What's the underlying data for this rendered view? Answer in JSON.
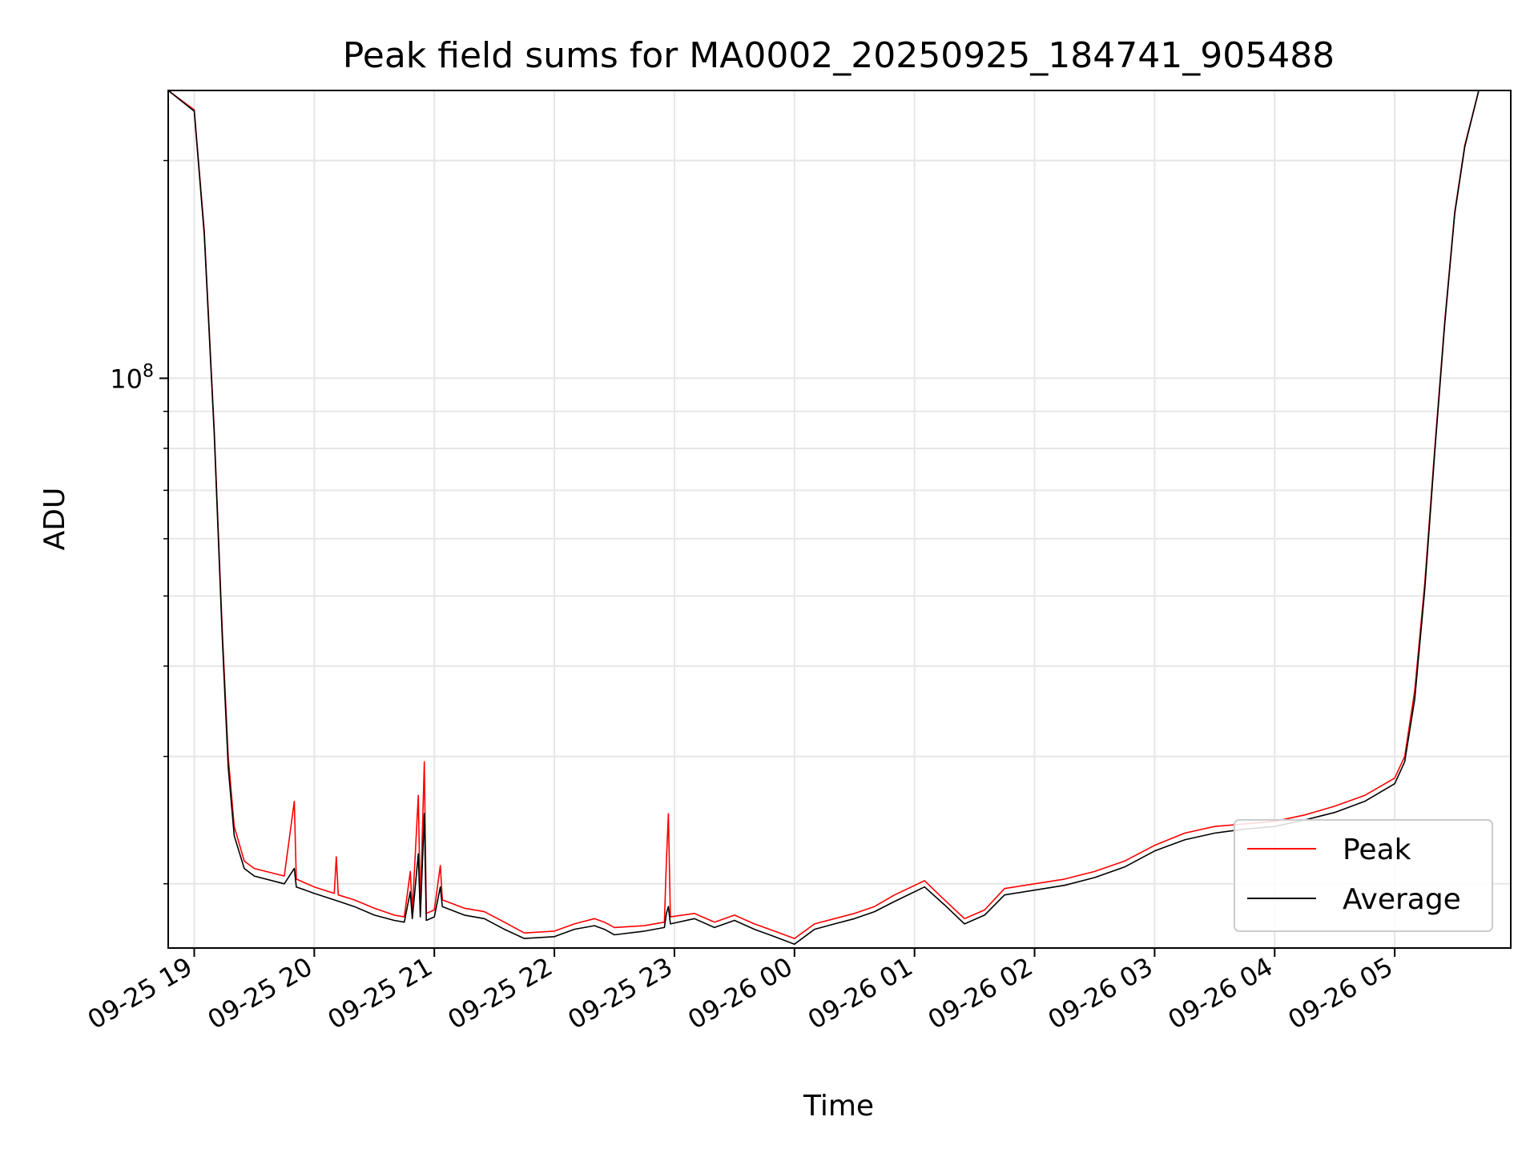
{
  "chart_data": {
    "type": "line",
    "title": "Peak field sums for MA0002_20250925_184741_905488",
    "xlabel": "Time",
    "ylabel": "ADU",
    "y_scale": "log",
    "y_tick_labels": [
      {
        "value": 100000000,
        "base": "10",
        "exp": "8"
      }
    ],
    "y_minor_ticks": [
      20000000,
      30000000,
      40000000,
      50000000,
      60000000,
      70000000,
      80000000,
      90000000,
      200000000
    ],
    "ylim": [
      16300000,
      250000000
    ],
    "xlim": [
      "2025-09-25 18:47",
      "2025-09-26 05:58"
    ],
    "x_tick_values": [
      "2025-09-25 19:00",
      "2025-09-25 20:00",
      "2025-09-25 21:00",
      "2025-09-25 22:00",
      "2025-09-25 23:00",
      "2025-09-26 00:00",
      "2025-09-26 01:00",
      "2025-09-26 02:00",
      "2025-09-26 03:00",
      "2025-09-26 04:00",
      "2025-09-26 05:00"
    ],
    "x_tick_labels": [
      "09-25 19",
      "09-25 20",
      "09-25 21",
      "09-25 22",
      "09-25 23",
      "09-26 00",
      "09-26 01",
      "09-26 02",
      "09-26 03",
      "09-26 04",
      "09-26 05"
    ],
    "grid": true,
    "legend_position": "lower-right",
    "series": [
      {
        "name": "Peak",
        "color": "#ff0000",
        "points": [
          [
            "2025-09-25 18:47",
            250000000
          ],
          [
            "2025-09-25 19:00",
            235000000
          ],
          [
            "2025-09-25 19:05",
            160000000
          ],
          [
            "2025-09-25 19:10",
            85000000
          ],
          [
            "2025-09-25 19:14",
            45000000
          ],
          [
            "2025-09-25 19:17",
            30000000
          ],
          [
            "2025-09-25 19:20",
            24000000
          ],
          [
            "2025-09-25 19:25",
            21500000
          ],
          [
            "2025-09-25 19:30",
            21000000
          ],
          [
            "2025-09-25 19:45",
            20500000
          ],
          [
            "2025-09-25 19:50",
            26000000
          ],
          [
            "2025-09-25 19:51",
            20300000
          ],
          [
            "2025-09-25 20:00",
            19800000
          ],
          [
            "2025-09-25 20:10",
            19400000
          ],
          [
            "2025-09-25 20:11",
            21800000
          ],
          [
            "2025-09-25 20:12",
            19300000
          ],
          [
            "2025-09-25 20:20",
            19000000
          ],
          [
            "2025-09-25 20:30",
            18500000
          ],
          [
            "2025-09-25 20:40",
            18100000
          ],
          [
            "2025-09-25 20:45",
            18000000
          ],
          [
            "2025-09-25 20:48",
            20800000
          ],
          [
            "2025-09-25 20:49",
            18300000
          ],
          [
            "2025-09-25 20:52",
            26500000
          ],
          [
            "2025-09-25 20:53",
            18500000
          ],
          [
            "2025-09-25 20:55",
            29500000
          ],
          [
            "2025-09-25 20:56",
            18200000
          ],
          [
            "2025-09-25 21:00",
            18400000
          ],
          [
            "2025-09-25 21:03",
            21200000
          ],
          [
            "2025-09-25 21:04",
            19000000
          ],
          [
            "2025-09-25 21:15",
            18500000
          ],
          [
            "2025-09-25 21:25",
            18300000
          ],
          [
            "2025-09-25 21:35",
            17700000
          ],
          [
            "2025-09-25 21:45",
            17100000
          ],
          [
            "2025-09-25 22:00",
            17200000
          ],
          [
            "2025-09-25 22:10",
            17600000
          ],
          [
            "2025-09-25 22:20",
            17900000
          ],
          [
            "2025-09-25 22:25",
            17700000
          ],
          [
            "2025-09-25 22:30",
            17400000
          ],
          [
            "2025-09-25 22:45",
            17500000
          ],
          [
            "2025-09-25 22:55",
            17700000
          ],
          [
            "2025-09-25 22:56",
            21500000
          ],
          [
            "2025-09-25 22:57",
            25000000
          ],
          [
            "2025-09-25 22:58",
            18000000
          ],
          [
            "2025-09-25 23:10",
            18200000
          ],
          [
            "2025-09-25 23:20",
            17700000
          ],
          [
            "2025-09-25 23:30",
            18100000
          ],
          [
            "2025-09-25 23:40",
            17600000
          ],
          [
            "2025-09-25 23:50",
            17200000
          ],
          [
            "2025-09-26 00:00",
            16800000
          ],
          [
            "2025-09-26 00:10",
            17600000
          ],
          [
            "2025-09-26 00:20",
            17900000
          ],
          [
            "2025-09-26 00:30",
            18200000
          ],
          [
            "2025-09-26 00:40",
            18600000
          ],
          [
            "2025-09-26 00:50",
            19300000
          ],
          [
            "2025-09-26 01:05",
            20200000
          ],
          [
            "2025-09-26 01:15",
            19000000
          ],
          [
            "2025-09-26 01:25",
            17900000
          ],
          [
            "2025-09-26 01:35",
            18400000
          ],
          [
            "2025-09-26 01:45",
            19700000
          ],
          [
            "2025-09-26 02:00",
            20000000
          ],
          [
            "2025-09-26 02:15",
            20300000
          ],
          [
            "2025-09-26 02:30",
            20800000
          ],
          [
            "2025-09-26 02:45",
            21500000
          ],
          [
            "2025-09-26 03:00",
            22600000
          ],
          [
            "2025-09-26 03:15",
            23500000
          ],
          [
            "2025-09-26 03:30",
            24000000
          ],
          [
            "2025-09-26 03:45",
            24200000
          ],
          [
            "2025-09-26 04:00",
            24400000
          ],
          [
            "2025-09-26 04:15",
            24900000
          ],
          [
            "2025-09-26 04:30",
            25600000
          ],
          [
            "2025-09-26 04:45",
            26500000
          ],
          [
            "2025-09-26 05:00",
            28000000
          ],
          [
            "2025-09-26 05:05",
            30000000
          ],
          [
            "2025-09-26 05:10",
            37000000
          ],
          [
            "2025-09-26 05:15",
            52000000
          ],
          [
            "2025-09-26 05:20",
            80000000
          ],
          [
            "2025-09-26 05:25",
            120000000
          ],
          [
            "2025-09-26 05:30",
            170000000
          ],
          [
            "2025-09-26 05:35",
            210000000
          ],
          [
            "2025-09-26 05:42",
            250000000
          ],
          [
            "2025-09-26 05:58",
            250000000
          ]
        ]
      },
      {
        "name": "Average",
        "color": "#000000",
        "points": [
          [
            "2025-09-25 18:47",
            250000000
          ],
          [
            "2025-09-25 19:00",
            234000000
          ],
          [
            "2025-09-25 19:05",
            158000000
          ],
          [
            "2025-09-25 19:10",
            84000000
          ],
          [
            "2025-09-25 19:14",
            44000000
          ],
          [
            "2025-09-25 19:17",
            29000000
          ],
          [
            "2025-09-25 19:20",
            23300000
          ],
          [
            "2025-09-25 19:25",
            21000000
          ],
          [
            "2025-09-25 19:30",
            20500000
          ],
          [
            "2025-09-25 19:45",
            20000000
          ],
          [
            "2025-09-25 19:50",
            21000000
          ],
          [
            "2025-09-25 19:51",
            19800000
          ],
          [
            "2025-09-25 20:00",
            19400000
          ],
          [
            "2025-09-25 20:10",
            19000000
          ],
          [
            "2025-09-25 20:20",
            18600000
          ],
          [
            "2025-09-25 20:30",
            18100000
          ],
          [
            "2025-09-25 20:40",
            17800000
          ],
          [
            "2025-09-25 20:45",
            17700000
          ],
          [
            "2025-09-25 20:48",
            19500000
          ],
          [
            "2025-09-25 20:49",
            17900000
          ],
          [
            "2025-09-25 20:52",
            22000000
          ],
          [
            "2025-09-25 20:53",
            18000000
          ],
          [
            "2025-09-25 20:55",
            25000000
          ],
          [
            "2025-09-25 20:56",
            17800000
          ],
          [
            "2025-09-25 21:00",
            18000000
          ],
          [
            "2025-09-25 21:03",
            19800000
          ],
          [
            "2025-09-25 21:04",
            18600000
          ],
          [
            "2025-09-25 21:15",
            18100000
          ],
          [
            "2025-09-25 21:25",
            17900000
          ],
          [
            "2025-09-25 21:35",
            17300000
          ],
          [
            "2025-09-25 21:45",
            16800000
          ],
          [
            "2025-09-25 22:00",
            16900000
          ],
          [
            "2025-09-25 22:10",
            17300000
          ],
          [
            "2025-09-25 22:20",
            17500000
          ],
          [
            "2025-09-25 22:25",
            17300000
          ],
          [
            "2025-09-25 22:30",
            17000000
          ],
          [
            "2025-09-25 22:45",
            17200000
          ],
          [
            "2025-09-25 22:55",
            17400000
          ],
          [
            "2025-09-25 22:56",
            18200000
          ],
          [
            "2025-09-25 22:57",
            18600000
          ],
          [
            "2025-09-25 22:58",
            17600000
          ],
          [
            "2025-09-25 23:10",
            17900000
          ],
          [
            "2025-09-25 23:20",
            17400000
          ],
          [
            "2025-09-25 23:30",
            17800000
          ],
          [
            "2025-09-25 23:40",
            17300000
          ],
          [
            "2025-09-25 23:50",
            16900000
          ],
          [
            "2025-09-26 00:00",
            16500000
          ],
          [
            "2025-09-26 00:10",
            17300000
          ],
          [
            "2025-09-26 00:20",
            17600000
          ],
          [
            "2025-09-26 00:30",
            17900000
          ],
          [
            "2025-09-26 00:40",
            18300000
          ],
          [
            "2025-09-26 00:50",
            18900000
          ],
          [
            "2025-09-26 01:05",
            19800000
          ],
          [
            "2025-09-26 01:15",
            18700000
          ],
          [
            "2025-09-26 01:25",
            17600000
          ],
          [
            "2025-09-26 01:35",
            18100000
          ],
          [
            "2025-09-26 01:45",
            19300000
          ],
          [
            "2025-09-26 02:00",
            19600000
          ],
          [
            "2025-09-26 02:15",
            19900000
          ],
          [
            "2025-09-26 02:30",
            20400000
          ],
          [
            "2025-09-26 02:45",
            21100000
          ],
          [
            "2025-09-26 03:00",
            22200000
          ],
          [
            "2025-09-26 03:15",
            23000000
          ],
          [
            "2025-09-26 03:30",
            23500000
          ],
          [
            "2025-09-26 03:45",
            23800000
          ],
          [
            "2025-09-26 04:00",
            24000000
          ],
          [
            "2025-09-26 04:15",
            24500000
          ],
          [
            "2025-09-26 04:30",
            25100000
          ],
          [
            "2025-09-26 04:45",
            26000000
          ],
          [
            "2025-09-26 05:00",
            27500000
          ],
          [
            "2025-09-26 05:05",
            29500000
          ],
          [
            "2025-09-26 05:10",
            36000000
          ],
          [
            "2025-09-26 05:15",
            51000000
          ],
          [
            "2025-09-26 05:20",
            79000000
          ],
          [
            "2025-09-26 05:25",
            119000000
          ],
          [
            "2025-09-26 05:30",
            169000000
          ],
          [
            "2025-09-26 05:35",
            209000000
          ],
          [
            "2025-09-26 05:42",
            250000000
          ],
          [
            "2025-09-26 05:58",
            250000000
          ]
        ]
      }
    ]
  }
}
